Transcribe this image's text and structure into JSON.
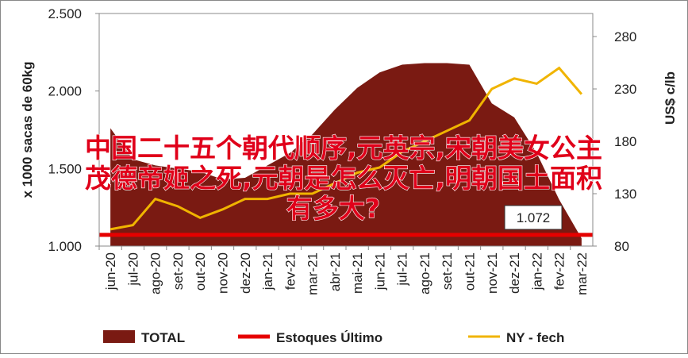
{
  "chart_data": {
    "type": "area-line",
    "categories": [
      "jun-20",
      "jul-20",
      "ago-20",
      "set-20",
      "out-20",
      "nov-20",
      "dez-20",
      "jan-21",
      "fev-21",
      "mar-21",
      "abr-21",
      "mai-21",
      "jun-21",
      "jul-21",
      "ago-21",
      "set-21",
      "out-21",
      "nov-21",
      "dez-21",
      "jan-22",
      "fev-22",
      "mar-22"
    ],
    "y_label": "x 1000 sacas de 60kg",
    "y2_label": "US$ c/lb",
    "ylim": [
      1000,
      2500
    ],
    "yticks": [
      {
        "value": 1000,
        "label": "1.000"
      },
      {
        "value": 1500,
        "label": "1.500"
      },
      {
        "value": 2000,
        "label": "2.000"
      },
      {
        "value": 2500,
        "label": "2.500"
      }
    ],
    "y2lim": [
      80,
      302
    ],
    "y2ticks": [
      80,
      130,
      180,
      230,
      280
    ],
    "series": [
      {
        "name": "TOTAL",
        "kind": "area",
        "color": "#7a1a12",
        "values": [
          1760,
          1560,
          1520,
          1500,
          1480,
          1430,
          1440,
          1520,
          1600,
          1720,
          1880,
          2020,
          2120,
          2170,
          2180,
          2180,
          2170,
          1920,
          1830,
          1600,
          1300,
          1050
        ]
      },
      {
        "name": "Estoques Último",
        "kind": "hline",
        "color": "#e60000",
        "value": 1072,
        "value_label": "1.072"
      },
      {
        "name": "NY - fech",
        "kind": "line",
        "axis": "y2",
        "color": "#f0b400",
        "values": [
          96,
          100,
          125,
          118,
          107,
          115,
          125,
          125,
          130,
          130,
          140,
          150,
          155,
          170,
          180,
          190,
          200,
          230,
          240,
          235,
          250,
          225
        ]
      }
    ]
  },
  "overlay": [
    "中国二十五个朝代顺序,元英宗,宋朝美女公主",
    "茂德帝姬之死,元朝是怎么灭亡,明朝国土面积",
    "有多大?"
  ]
}
